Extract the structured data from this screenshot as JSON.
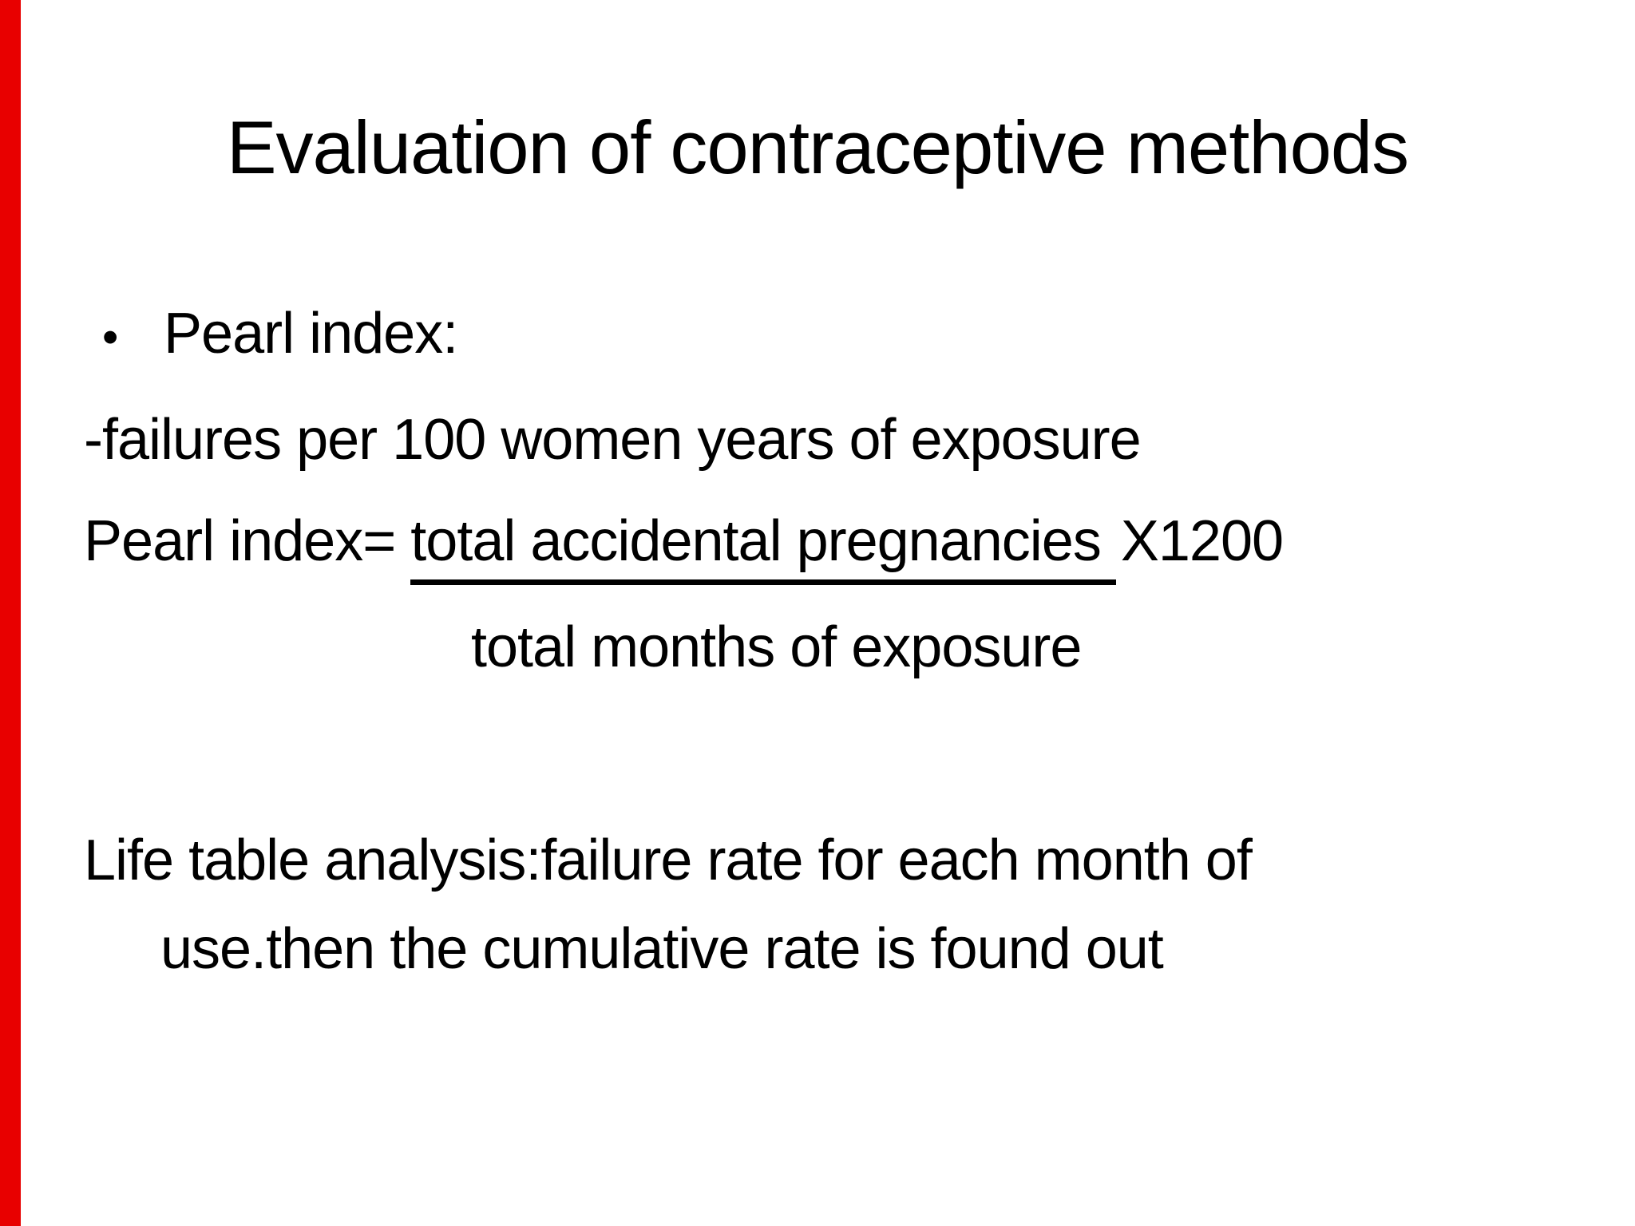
{
  "slide": {
    "title": "Evaluation of contraceptive methods",
    "bullet": {
      "glyph": "•",
      "label": "Pearl index:"
    },
    "failures_line": "-failures per 100 women years of exposure",
    "formula": {
      "prefix": "Pearl index= ",
      "numerator_underlined": "total accidental pregnancies ",
      "multiplier": "X1200",
      "denominator": "total months of exposure"
    },
    "life_table": {
      "line1": "Life table analysis:failure rate for each month of",
      "line2": "use.then the cumulative rate is found out"
    }
  },
  "colors": {
    "background": "#ffffff",
    "text": "#000000",
    "accent_bar": "#e80000"
  }
}
